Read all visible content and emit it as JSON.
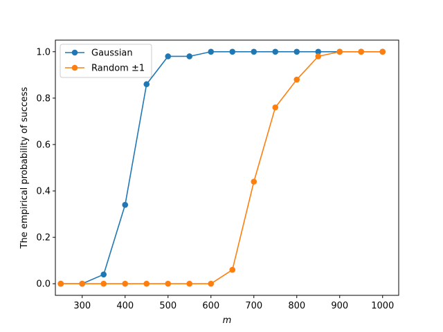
{
  "chart_data": {
    "type": "line",
    "xlabel": "m",
    "ylabel": "The empirical probability of success",
    "xlim": [
      237.5,
      1037.5
    ],
    "ylim": [
      -0.05,
      1.05
    ],
    "xticks": [
      300,
      400,
      500,
      600,
      700,
      800,
      900,
      1000
    ],
    "yticks": [
      0.0,
      0.2,
      0.4,
      0.6,
      0.8,
      1.0
    ],
    "xtick_labels": [
      "300",
      "400",
      "500",
      "600",
      "700",
      "800",
      "900",
      "1000"
    ],
    "ytick_labels": [
      "0.0",
      "0.2",
      "0.4",
      "0.6",
      "0.8",
      "1.0"
    ],
    "x": [
      250,
      300,
      350,
      400,
      450,
      500,
      550,
      600,
      650,
      700,
      750,
      800,
      850,
      900,
      950,
      1000
    ],
    "series": [
      {
        "name": "Gaussian",
        "color": "#1f77b4",
        "values": [
          0.0,
          0.0,
          0.04,
          0.34,
          0.86,
          0.98,
          0.98,
          1.0,
          1.0,
          1.0,
          1.0,
          1.0,
          1.0,
          1.0,
          1.0,
          1.0
        ]
      },
      {
        "name": "Random ±1",
        "color": "#ff7f0e",
        "values": [
          0.0,
          0.0,
          0.0,
          0.0,
          0.0,
          0.0,
          0.0,
          0.0,
          0.06,
          0.44,
          0.76,
          0.88,
          0.98,
          1.0,
          1.0,
          1.0
        ]
      }
    ],
    "legend": "top-left",
    "grid": false
  }
}
